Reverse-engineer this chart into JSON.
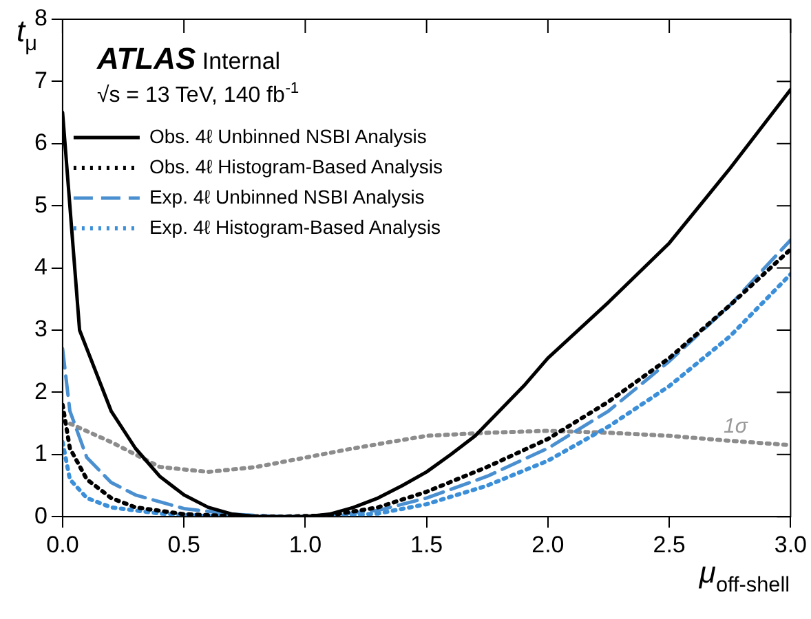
{
  "chart_data": {
    "type": "line",
    "xlabel": "μ$_{off-shell}$",
    "ylabel": "t$_{μ}$",
    "annotations": [
      "ATLAS Internal",
      "√s = 13 TeV, 140 fb$^{-1}$",
      "1σ"
    ],
    "xlim": [
      0,
      3
    ],
    "ylim": [
      0,
      8
    ],
    "xticks": [
      {
        "value": 0,
        "label": "0.0"
      },
      {
        "value": 0.5,
        "label": "0.5"
      },
      {
        "value": 1,
        "label": "1.0"
      },
      {
        "value": 1.5,
        "label": "1.5"
      },
      {
        "value": 2,
        "label": "2.0"
      },
      {
        "value": 2.5,
        "label": "2.5"
      },
      {
        "value": 3,
        "label": "3.0"
      }
    ],
    "yticks": [
      0,
      1,
      2,
      3,
      4,
      5,
      6,
      7,
      8
    ],
    "grid": false,
    "legend": "top left",
    "marker": "none",
    "series": [
      {
        "name": "Obs. 4ℓ Unbinned NSBI Analysis",
        "color": "#000000",
        "line_style": "solid",
        "x": [
          0,
          0.07,
          0.1,
          0.2,
          0.3,
          0.4,
          0.5,
          0.6,
          0.7,
          0.8,
          0.9,
          1.0,
          1.1,
          1.2,
          1.3,
          1.4,
          1.5,
          1.6,
          1.7,
          1.8,
          1.9,
          2.0,
          2.25,
          2.5,
          2.75,
          3.0
        ],
        "values": [
          6.5,
          3.0,
          2.7,
          1.7,
          1.1,
          0.65,
          0.35,
          0.15,
          0.04,
          0.0,
          0.0,
          0.0,
          0.04,
          0.15,
          0.3,
          0.5,
          0.72,
          1.0,
          1.3,
          1.7,
          2.1,
          2.55,
          3.45,
          4.4,
          5.6,
          6.87
        ]
      },
      {
        "name": "Obs. 4ℓ Histogram-Based Analysis",
        "color": "#000000",
        "line_style": "dotted",
        "x": [
          0,
          0.03,
          0.1,
          0.2,
          0.3,
          0.5,
          0.7,
          0.9,
          1.1,
          1.3,
          1.5,
          1.75,
          2.0,
          2.25,
          2.5,
          2.75,
          3.0
        ],
        "values": [
          1.8,
          1.1,
          0.6,
          0.3,
          0.15,
          0.04,
          0.01,
          0.0,
          0.02,
          0.15,
          0.4,
          0.8,
          1.25,
          1.85,
          2.55,
          3.4,
          4.3
        ]
      },
      {
        "name": "Exp. 4ℓ Unbinned NSBI Analysis",
        "color": "#4a8fd0",
        "line_style": "dashed",
        "x": [
          0,
          0.03,
          0.1,
          0.2,
          0.3,
          0.5,
          0.7,
          0.9,
          1.0,
          1.1,
          1.3,
          1.5,
          1.75,
          2.0,
          2.25,
          2.5,
          2.75,
          3.0
        ],
        "values": [
          2.7,
          1.7,
          0.95,
          0.55,
          0.35,
          0.13,
          0.04,
          0.0,
          0.0,
          0.02,
          0.1,
          0.3,
          0.65,
          1.1,
          1.7,
          2.5,
          3.4,
          4.45
        ]
      },
      {
        "name": "Exp. 4ℓ Histogram-Based Analysis",
        "color": "#3b8fd9",
        "line_style": "dotted",
        "x": [
          0,
          0.03,
          0.1,
          0.2,
          0.4,
          0.6,
          0.9,
          1.1,
          1.3,
          1.5,
          1.75,
          2.0,
          2.25,
          2.5,
          2.75,
          3.0
        ],
        "values": [
          1.2,
          0.6,
          0.3,
          0.15,
          0.05,
          0.01,
          0.0,
          0.0,
          0.05,
          0.2,
          0.5,
          0.9,
          1.45,
          2.1,
          2.9,
          3.9
        ]
      },
      {
        "color": "#8c8c8c",
        "line_style": "dotted",
        "x": [
          0,
          0.2,
          0.4,
          0.6,
          0.8,
          1.0,
          1.2,
          1.5,
          1.75,
          2.0,
          2.25,
          2.5,
          2.75,
          3.0
        ],
        "values": [
          1.55,
          1.2,
          0.8,
          0.72,
          0.8,
          0.95,
          1.1,
          1.3,
          1.35,
          1.38,
          1.35,
          1.3,
          1.22,
          1.15
        ]
      }
    ]
  }
}
